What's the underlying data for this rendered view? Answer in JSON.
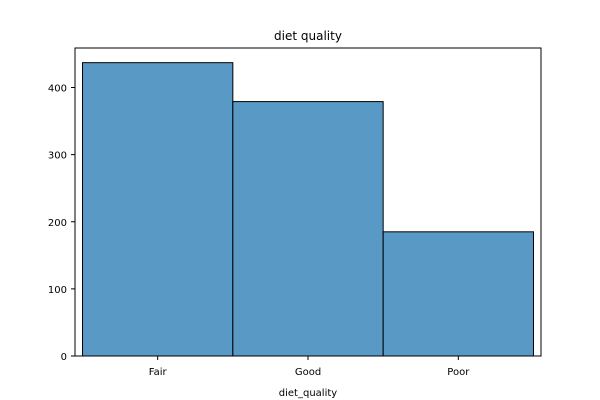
{
  "chart_data": {
    "type": "bar",
    "title": "diet quality",
    "xlabel": "diet_quality",
    "ylabel": "",
    "categories": [
      "Fair",
      "Good",
      "Poor"
    ],
    "values": [
      437,
      379,
      185
    ],
    "ylim": [
      0,
      458.85
    ],
    "yticks": [
      0,
      100,
      200,
      300,
      400
    ],
    "bar_color": "#5899c6",
    "bar_edge_color": "#000000",
    "grid": false,
    "legend": "none"
  }
}
